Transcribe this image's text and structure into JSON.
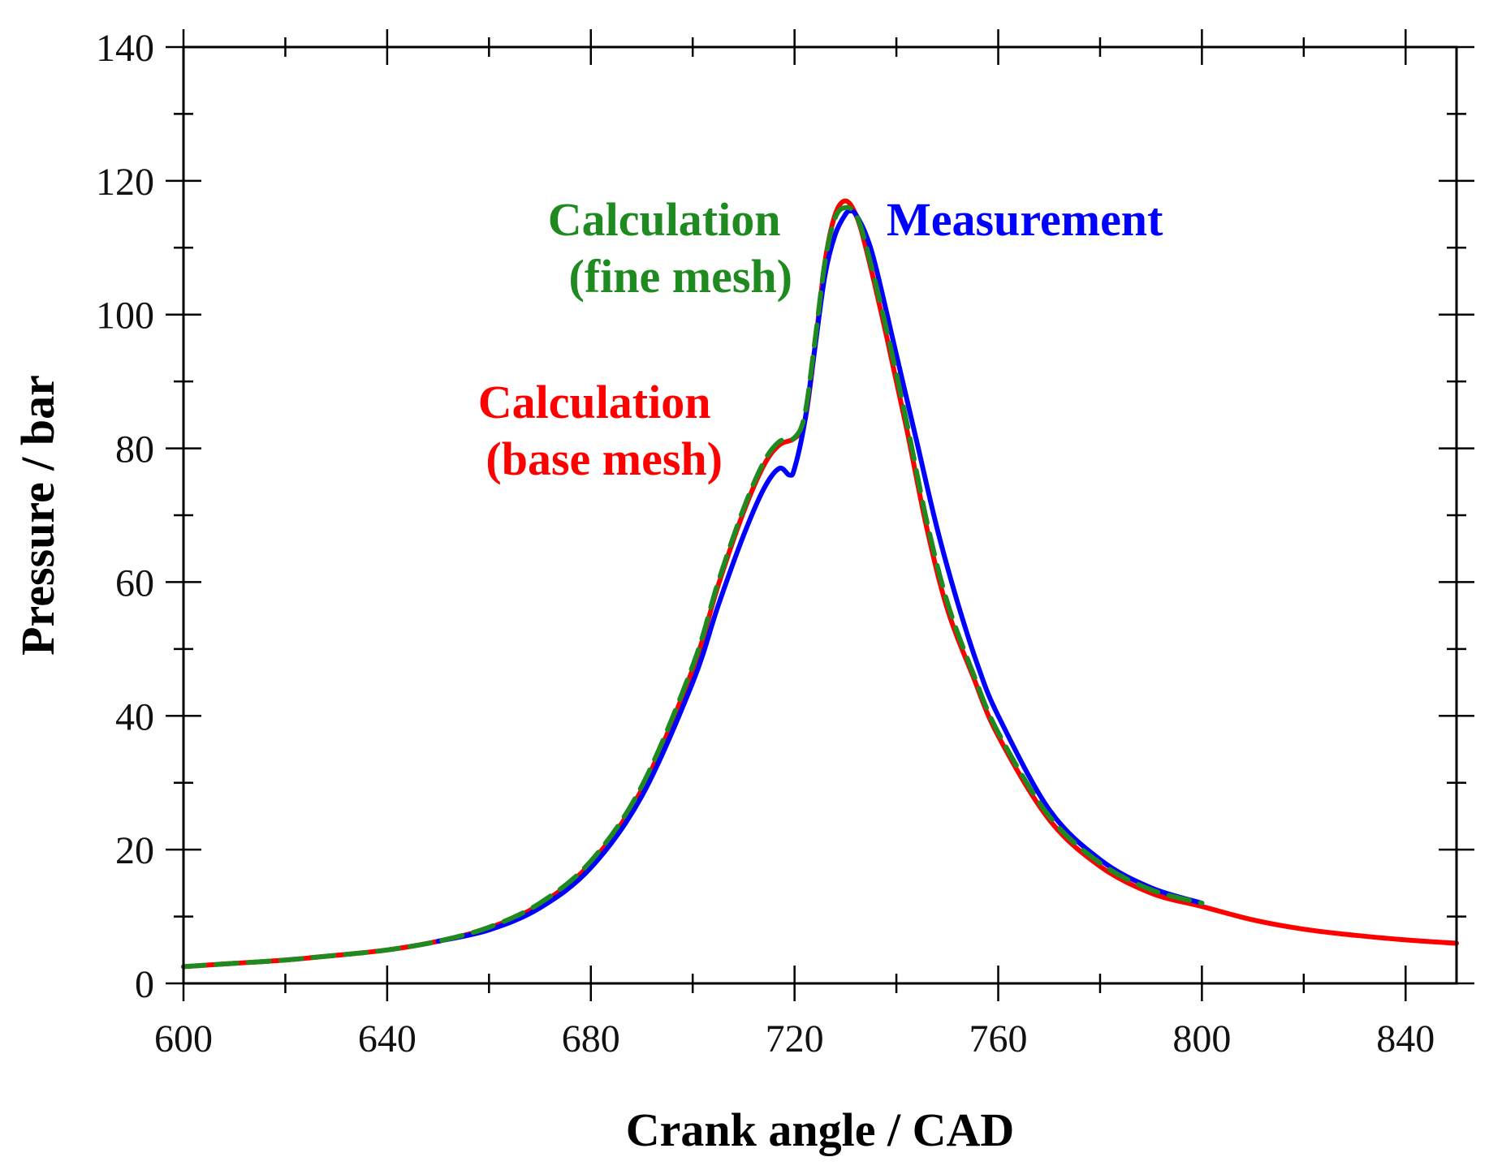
{
  "chart_data": {
    "type": "line",
    "title": "",
    "xlabel": "Crank angle / CAD",
    "ylabel": "Pressure / bar",
    "xlim": [
      600,
      850
    ],
    "ylim": [
      0,
      140
    ],
    "x_major_ticks": [
      600,
      640,
      680,
      720,
      760,
      800,
      840
    ],
    "y_major_ticks": [
      0,
      20,
      40,
      60,
      80,
      100,
      120,
      140
    ],
    "x_tick_labels": [
      "600",
      "640",
      "680",
      "720",
      "760",
      "800",
      "840"
    ],
    "y_tick_labels": [
      "0",
      "20",
      "40",
      "60",
      "80",
      "100",
      "120",
      "140"
    ],
    "grid": false,
    "legend": "none",
    "annotations": [
      {
        "id": "fine",
        "lines": [
          "Calculation",
          "(fine mesh)"
        ],
        "color": "#1f8a1f",
        "near": [
          710,
          112
        ]
      },
      {
        "id": "meas",
        "lines": [
          "Measurement"
        ],
        "color": "#0000ff",
        "near": [
          736,
          115
        ]
      },
      {
        "id": "base",
        "lines": [
          "Calculation",
          "(base mesh)"
        ],
        "color": "#ff0000",
        "near": [
          706,
          82
        ]
      }
    ],
    "series": [
      {
        "name": "Calculation (base mesh)",
        "color": "#ff0000",
        "style": "solid",
        "x": [
          600,
          610,
          620,
          630,
          640,
          650,
          660,
          670,
          680,
          690,
          700,
          705,
          710,
          714,
          717,
          720,
          722,
          724,
          726,
          728,
          730,
          732,
          734,
          738,
          742,
          746,
          750,
          755,
          760,
          770,
          780,
          790,
          800,
          810,
          820,
          830,
          840,
          850
        ],
        "y": [
          2.5,
          3.0,
          3.5,
          4.2,
          5.0,
          6.3,
          8.3,
          11.8,
          18.0,
          29.0,
          47.0,
          59.5,
          70.5,
          77.5,
          80.5,
          81.5,
          84.0,
          95.0,
          108.0,
          115.0,
          117.0,
          115.0,
          110.0,
          97.0,
          83.0,
          68.0,
          56.0,
          46.0,
          37.0,
          24.5,
          17.5,
          13.5,
          11.5,
          9.5,
          8.1,
          7.2,
          6.5,
          6.0
        ]
      },
      {
        "name": "Calculation (fine mesh)",
        "color": "#1f8a1f",
        "style": "dashed",
        "x": [
          600,
          610,
          620,
          630,
          640,
          650,
          660,
          670,
          680,
          690,
          700,
          705,
          710,
          714,
          717,
          720,
          722,
          724,
          726,
          728,
          730,
          732,
          734,
          738,
          742,
          746,
          750,
          755,
          760,
          770,
          780,
          790,
          800
        ],
        "y": [
          2.5,
          3.0,
          3.5,
          4.2,
          5.0,
          6.3,
          8.4,
          12.0,
          18.3,
          29.5,
          47.5,
          60.0,
          71.0,
          78.0,
          81.0,
          81.6,
          85.0,
          96.0,
          108.0,
          114.5,
          116.0,
          115.0,
          110.5,
          98.0,
          84.0,
          69.0,
          57.0,
          46.5,
          37.5,
          25.0,
          18.0,
          14.0,
          12.0
        ]
      },
      {
        "name": "Measurement",
        "color": "#0000ff",
        "style": "solid",
        "x": [
          650,
          660,
          670,
          680,
          690,
          700,
          705,
          710,
          714,
          717,
          719,
          720,
          722,
          724,
          726,
          728,
          730,
          731,
          732,
          734,
          736,
          740,
          744,
          748,
          752,
          756,
          760,
          770,
          780,
          790,
          800
        ],
        "y": [
          6.3,
          8.0,
          11.3,
          17.3,
          28.0,
          45.0,
          56.5,
          67.0,
          74.0,
          77.0,
          76.0,
          77.0,
          84.0,
          95.0,
          106.0,
          112.0,
          115.0,
          115.5,
          115.0,
          112.0,
          107.0,
          94.0,
          81.0,
          68.0,
          57.0,
          47.5,
          40.0,
          26.0,
          18.5,
          14.3,
          12.0
        ]
      }
    ]
  }
}
